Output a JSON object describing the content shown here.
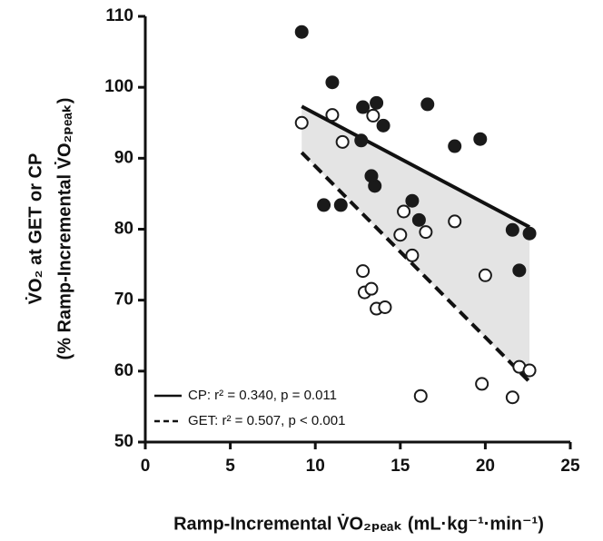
{
  "chart_data": {
    "type": "scatter",
    "xlabel": "Ramp-Incremental V̇O₂ₚₑₐₖ (mL·kg⁻¹·min⁻¹)",
    "ylabel": [
      "V̇O₂ at GET or CP",
      "(% Ramp-Incremental V̇O₂ₚₑₐₖ)"
    ],
    "xlim": [
      0,
      25
    ],
    "xticks": [
      0,
      5,
      10,
      15,
      20,
      25
    ],
    "ylim": [
      50,
      110
    ],
    "yticks": [
      50,
      60,
      70,
      80,
      90,
      100,
      110
    ],
    "grid": false,
    "legend": "lower left",
    "series": [
      {
        "marker": "filled",
        "color": "#1a1a1a",
        "x": [
          9.2,
          11.0,
          12.8,
          13.6,
          14.0,
          16.6,
          12.7,
          10.5,
          11.5,
          13.3,
          13.5,
          15.7,
          16.1,
          18.2,
          19.7,
          21.6,
          22.0,
          22.6
        ],
        "values": [
          107.8,
          100.7,
          97.2,
          97.8,
          94.6,
          97.6,
          92.5,
          83.4,
          83.4,
          87.5,
          86.1,
          84.0,
          81.3,
          91.7,
          92.7,
          79.9,
          74.2,
          79.4
        ]
      },
      {
        "marker": "open",
        "color": "#1a1a1a",
        "x": [
          9.2,
          11.0,
          11.6,
          13.4,
          15.2,
          15.0,
          15.7,
          16.5,
          18.2,
          20.0,
          12.8,
          12.9,
          13.3,
          13.6,
          14.1,
          16.2,
          19.8,
          21.6,
          22.0,
          22.6
        ],
        "values": [
          95.0,
          96.1,
          92.3,
          96.0,
          82.5,
          79.2,
          76.3,
          79.6,
          81.1,
          73.5,
          74.1,
          71.1,
          71.6,
          68.8,
          69.0,
          56.5,
          58.2,
          56.3,
          60.6,
          60.1
        ]
      }
    ],
    "fits": [
      {
        "name": "CP: r² = 0.340, p = 0.011",
        "dash": false,
        "x": [
          9.2,
          22.6
        ],
        "values": [
          97.3,
          80.3
        ]
      },
      {
        "name": "GET: r² = 0.507, p < 0.001",
        "dash": true,
        "x": [
          9.2,
          22.6
        ],
        "values": [
          90.8,
          58.5
        ]
      }
    ],
    "band_color": "#e4e4e4"
  }
}
